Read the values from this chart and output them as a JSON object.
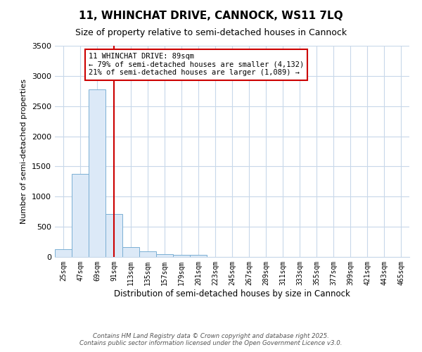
{
  "title": "11, WHINCHAT DRIVE, CANNOCK, WS11 7LQ",
  "subtitle": "Size of property relative to semi-detached houses in Cannock",
  "xlabel": "Distribution of semi-detached houses by size in Cannock",
  "ylabel": "Number of semi-detached properties",
  "bins": [
    "25sqm",
    "47sqm",
    "69sqm",
    "91sqm",
    "113sqm",
    "135sqm",
    "157sqm",
    "179sqm",
    "201sqm",
    "223sqm",
    "245sqm",
    "267sqm",
    "289sqm",
    "311sqm",
    "333sqm",
    "355sqm",
    "377sqm",
    "399sqm",
    "421sqm",
    "443sqm",
    "465sqm"
  ],
  "values": [
    130,
    1380,
    2780,
    710,
    160,
    90,
    50,
    35,
    30,
    0,
    0,
    0,
    0,
    0,
    0,
    0,
    0,
    0,
    0,
    0,
    0
  ],
  "bar_color": "#dce9f7",
  "bar_edge_color": "#7bafd4",
  "vline_index": 3,
  "vline_color": "#cc0000",
  "annotation_line1": "11 WHINCHAT DRIVE: 89sqm",
  "annotation_line2": "← 79% of semi-detached houses are smaller (4,132)",
  "annotation_line3": "21% of semi-detached houses are larger (1,089) →",
  "annotation_box_color": "#ffffff",
  "annotation_box_edge": "#cc0000",
  "ylim": [
    0,
    3500
  ],
  "yticks": [
    0,
    500,
    1000,
    1500,
    2000,
    2500,
    3000,
    3500
  ],
  "background_color": "#ffffff",
  "grid_color": "#c8d8ea",
  "footer_line1": "Contains HM Land Registry data © Crown copyright and database right 2025.",
  "footer_line2": "Contains public sector information licensed under the Open Government Licence v3.0."
}
